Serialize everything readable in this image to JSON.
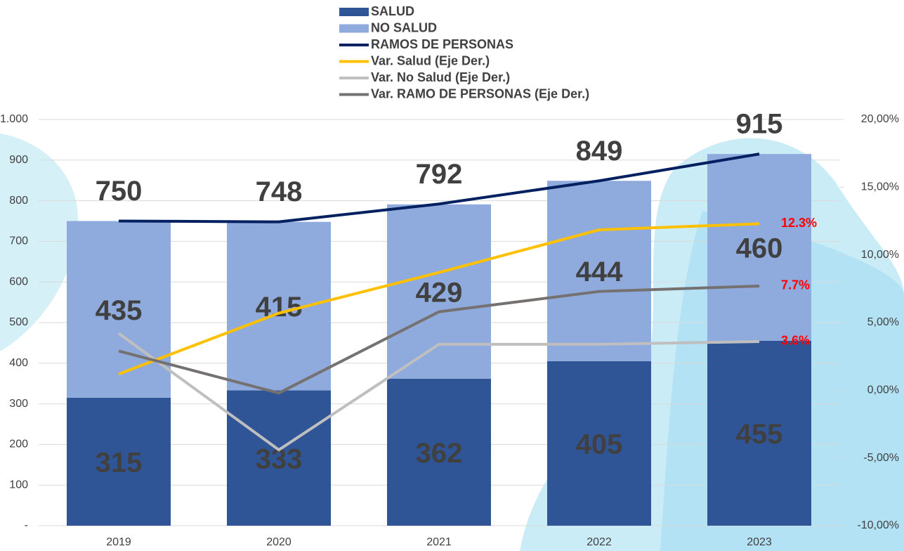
{
  "chart_data": {
    "type": "bar",
    "stacked": true,
    "categories": [
      "2019",
      "2020",
      "2021",
      "2022",
      "2023"
    ],
    "series": [
      {
        "name": "SALUD",
        "type": "bar",
        "color": "#2f5597",
        "values": [
          315,
          333,
          362,
          405,
          455
        ]
      },
      {
        "name": "NO SALUD",
        "type": "bar",
        "color": "#8faadc",
        "values": [
          435,
          415,
          429,
          444,
          460
        ]
      },
      {
        "name": "RAMOS DE PERSONAS",
        "type": "line",
        "color": "#002060",
        "values": [
          750,
          748,
          792,
          849,
          915
        ]
      },
      {
        "name": "Var. Salud (Eje Der.)",
        "type": "line",
        "axis": "y2",
        "color": "#ffc000",
        "values": [
          1.2,
          5.7,
          8.7,
          11.85,
          12.3
        ],
        "value_labels": [
          null,
          null,
          null,
          null,
          "12.3%"
        ]
      },
      {
        "name": "Var. No Salud (Eje Der.)",
        "type": "line",
        "axis": "y2",
        "color": "#bfbfbf",
        "values": [
          4.2,
          -4.4,
          3.4,
          3.4,
          3.6
        ],
        "value_labels": [
          null,
          null,
          null,
          null,
          "3.6%"
        ]
      },
      {
        "name": "Var. RAMO DE PERSONAS (Eje Der.)",
        "type": "line",
        "axis": "y2",
        "color": "#767171",
        "values": [
          2.9,
          -0.2,
          5.8,
          7.3,
          7.7
        ],
        "value_labels": [
          null,
          null,
          null,
          null,
          "7.7%"
        ]
      }
    ],
    "ylim": [
      0,
      1000
    ],
    "yticks": [
      {
        "value": 0,
        "label": "-"
      },
      100,
      200,
      300,
      400,
      500,
      600,
      700,
      800,
      900,
      {
        "value": 1000,
        "label": "1.000"
      }
    ],
    "y2lim": [
      -10,
      20
    ],
    "y2ticks": [
      {
        "value": -10,
        "label": "-10,00%"
      },
      {
        "value": -5,
        "label": "-5,00%"
      },
      {
        "value": 0,
        "label": "0,00%"
      },
      {
        "value": 5,
        "label": "5,00%"
      },
      {
        "value": 10,
        "label": "10,00%"
      },
      {
        "value": 15,
        "label": "15,00%"
      },
      {
        "value": 20,
        "label": "20,00%"
      }
    ],
    "grid": true
  }
}
